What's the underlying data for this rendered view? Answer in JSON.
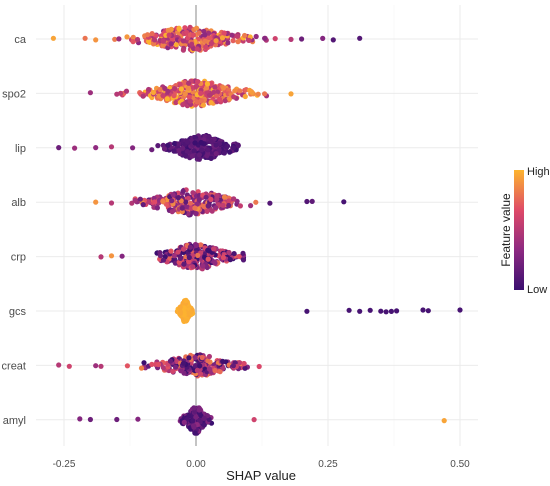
{
  "chart_data": {
    "type": "scatter",
    "subtype": "shap-beeswarm",
    "xlabel": "SHAP value",
    "xlim": [
      -0.29,
      0.53
    ],
    "x_ticks": [
      {
        "value": -0.25,
        "label": "-0.25"
      },
      {
        "value": 0.0,
        "label": "0.00"
      },
      {
        "value": 0.25,
        "label": "0.25"
      },
      {
        "value": 0.5,
        "label": "0.50"
      }
    ],
    "grid": true,
    "zero_line": true,
    "legend": {
      "title": "Feature value",
      "high_label": "High",
      "low_label": "Low",
      "placement": "right"
    },
    "colors": {
      "high": "#fcb52a",
      "mid": "#e0622e",
      "low": "#4b0f6e",
      "grid": "#ebebeb",
      "zero_line": "#8a8a8a"
    },
    "features": [
      {
        "name": "ca",
        "min": -0.27,
        "max": 0.31,
        "outliers": [
          {
            "x": -0.27,
            "v": 0.95
          },
          {
            "x": -0.21,
            "v": 0.8
          },
          {
            "x": -0.19,
            "v": 0.9
          },
          {
            "x": 0.15,
            "v": 0.6
          },
          {
            "x": 0.18,
            "v": 0.5
          },
          {
            "x": 0.2,
            "v": 0.2
          },
          {
            "x": 0.24,
            "v": 0.3
          },
          {
            "x": 0.26,
            "v": 0.1
          },
          {
            "x": 0.31,
            "v": 0.1
          }
        ]
      },
      {
        "name": "spo2",
        "min": -0.2,
        "max": 0.18,
        "outliers": [
          {
            "x": -0.2,
            "v": 0.4
          },
          {
            "x": -0.15,
            "v": 0.5
          },
          {
            "x": 0.13,
            "v": 0.8
          },
          {
            "x": 0.18,
            "v": 0.95
          }
        ]
      },
      {
        "name": "lip",
        "min": -0.26,
        "max": 0.08,
        "outliers": [
          {
            "x": -0.26,
            "v": 0.2
          },
          {
            "x": -0.23,
            "v": 0.4
          },
          {
            "x": -0.19,
            "v": 0.35
          },
          {
            "x": -0.16,
            "v": 0.5
          },
          {
            "x": -0.12,
            "v": 0.3
          }
        ]
      },
      {
        "name": "alb",
        "min": -0.19,
        "max": 0.28,
        "outliers": [
          {
            "x": -0.19,
            "v": 0.9
          },
          {
            "x": -0.16,
            "v": 0.5
          },
          {
            "x": 0.14,
            "v": 0.1
          },
          {
            "x": 0.21,
            "v": 0.1
          },
          {
            "x": 0.22,
            "v": 0.15
          },
          {
            "x": 0.28,
            "v": 0.05
          }
        ]
      },
      {
        "name": "crp",
        "min": -0.18,
        "max": 0.09,
        "outliers": [
          {
            "x": -0.18,
            "v": 0.5
          },
          {
            "x": -0.16,
            "v": 0.9
          },
          {
            "x": -0.14,
            "v": 0.3
          }
        ]
      },
      {
        "name": "gcs",
        "min": -0.04,
        "max": 0.5,
        "outliers": [
          {
            "x": 0.21,
            "v": 0.05
          },
          {
            "x": 0.29,
            "v": 0.05
          },
          {
            "x": 0.31,
            "v": 0.05
          },
          {
            "x": 0.33,
            "v": 0.05
          },
          {
            "x": 0.35,
            "v": 0.05
          },
          {
            "x": 0.36,
            "v": 0.05
          },
          {
            "x": 0.37,
            "v": 0.05
          },
          {
            "x": 0.38,
            "v": 0.05
          },
          {
            "x": 0.43,
            "v": 0.05
          },
          {
            "x": 0.44,
            "v": 0.05
          },
          {
            "x": 0.5,
            "v": 0.05
          }
        ]
      },
      {
        "name": "creat",
        "min": -0.26,
        "max": 0.12,
        "outliers": [
          {
            "x": -0.26,
            "v": 0.5
          },
          {
            "x": -0.24,
            "v": 0.6
          },
          {
            "x": -0.19,
            "v": 0.4
          },
          {
            "x": -0.18,
            "v": 0.5
          },
          {
            "x": -0.13,
            "v": 0.7
          }
        ]
      },
      {
        "name": "amyl",
        "min": -0.22,
        "max": 0.47,
        "outliers": [
          {
            "x": -0.22,
            "v": 0.3
          },
          {
            "x": -0.2,
            "v": 0.2
          },
          {
            "x": -0.15,
            "v": 0.2
          },
          {
            "x": -0.11,
            "v": 0.3
          },
          {
            "x": 0.11,
            "v": 0.6
          },
          {
            "x": 0.47,
            "v": 0.95
          }
        ]
      }
    ]
  }
}
